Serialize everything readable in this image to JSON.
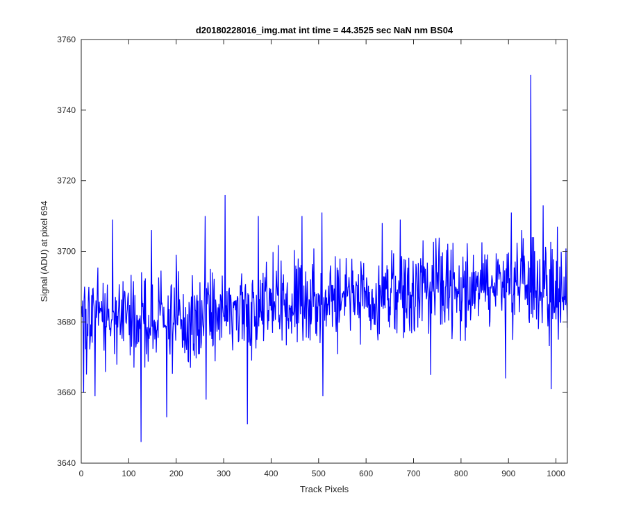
{
  "chart_data": {
    "type": "line",
    "title": "d20180228016_img.mat int time = 44.3525 sec  NaN nm BS04",
    "xlabel": "Track Pixels",
    "ylabel": "Signal (ADU) at pixel 694",
    "xlim": [
      0,
      1024
    ],
    "ylim": [
      3640,
      3760
    ],
    "xticks": [
      0,
      100,
      200,
      300,
      400,
      500,
      600,
      700,
      800,
      900,
      1000
    ],
    "yticks": [
      3640,
      3660,
      3680,
      3700,
      3720,
      3740,
      3760
    ],
    "grid": false,
    "legend": "none",
    "series": [
      {
        "color": "#0000ff",
        "x_start": 1,
        "x_step": 1,
        "noise_amplitude": 6.5,
        "trend": [
          [
            0,
            3681
          ],
          [
            200,
            3681
          ],
          [
            300,
            3682
          ],
          [
            400,
            3685
          ],
          [
            500,
            3685
          ],
          [
            600,
            3688
          ],
          [
            700,
            3689
          ],
          [
            800,
            3690
          ],
          [
            900,
            3691
          ],
          [
            1024,
            3688
          ]
        ],
        "highlights": [
          {
            "x": 947,
            "y": 3750
          },
          {
            "x": 126,
            "y": 3646
          },
          {
            "x": 350,
            "y": 3651
          },
          {
            "x": 180,
            "y": 3653
          },
          {
            "x": 303,
            "y": 3716
          },
          {
            "x": 5,
            "y": 3660
          },
          {
            "x": 29,
            "y": 3659
          },
          {
            "x": 263,
            "y": 3658
          },
          {
            "x": 509,
            "y": 3659
          },
          {
            "x": 990,
            "y": 3661
          },
          {
            "x": 894,
            "y": 3664
          },
          {
            "x": 736,
            "y": 3665
          },
          {
            "x": 66,
            "y": 3709
          },
          {
            "x": 148,
            "y": 3706
          },
          {
            "x": 261,
            "y": 3710
          },
          {
            "x": 373,
            "y": 3710
          },
          {
            "x": 465,
            "y": 3710
          },
          {
            "x": 507,
            "y": 3711
          },
          {
            "x": 634,
            "y": 3708
          },
          {
            "x": 672,
            "y": 3709
          },
          {
            "x": 906,
            "y": 3711
          },
          {
            "x": 928,
            "y": 3706
          },
          {
            "x": 973,
            "y": 3713
          },
          {
            "x": 1003,
            "y": 3707
          }
        ]
      }
    ]
  }
}
